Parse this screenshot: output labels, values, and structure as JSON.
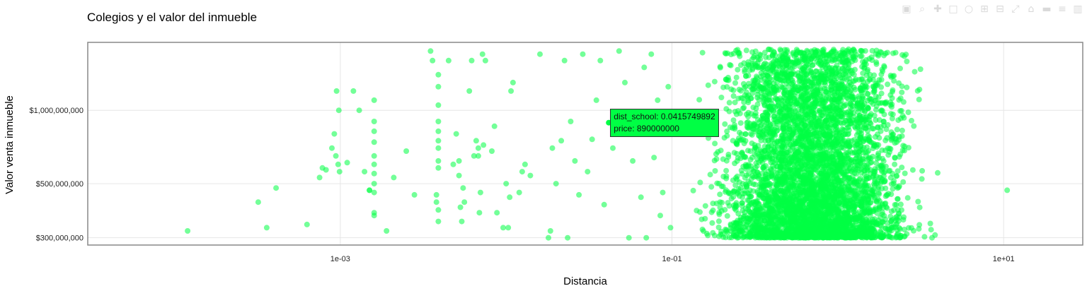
{
  "modebar": {
    "icons": [
      "camera-icon",
      "zoom-icon",
      "pan-icon",
      "box-select-icon",
      "lasso-select-icon",
      "zoom-in-icon",
      "zoom-out-icon",
      "autoscale-icon",
      "reset-axes-icon",
      "hover-closest-icon",
      "hover-compare-icon",
      "plotly-logo-icon"
    ],
    "glyphs": [
      "▣",
      "⌕",
      "✚",
      "□",
      "○",
      "⊞",
      "⊟",
      "⤢",
      "⌂",
      "▬",
      "≡",
      "▥"
    ]
  },
  "tooltip": {
    "line1": "dist_school:  0.0415749892",
    "line2": "price:  890000000"
  },
  "chart_data": {
    "type": "scatter",
    "title": "Colegios y el valor del inmueble",
    "xlabel": "Distancia",
    "ylabel": "Valor venta inmueble",
    "xscale": "log",
    "yscale": "log",
    "xlim": [
      3e-05,
      30
    ],
    "ylim": [
      280000000,
      1900000000
    ],
    "x_ticks": [
      {
        "value": 0.001,
        "label": "1e-03"
      },
      {
        "value": 0.1,
        "label": "1e-01"
      },
      {
        "value": 10,
        "label": "1e+01"
      }
    ],
    "y_ticks": [
      {
        "value": 300000000,
        "label": "$300,000,000"
      },
      {
        "value": 500000000,
        "label": "$500,000,000"
      },
      {
        "value": 1000000000,
        "label": "$1,000,000,000"
      }
    ],
    "grid": true,
    "marker_color": "#00ff44",
    "marker_opacity": 0.55,
    "n_points": 5200,
    "x_range_bulk": [
      0.1,
      5.0
    ],
    "y_range_bulk": [
      300000000,
      1780000000
    ],
    "highlight_point": {
      "x": 0.0415749892,
      "y": 890000000
    },
    "points": [
      [
        0.00012,
        320000000
      ],
      [
        0.00032,
        420000000
      ],
      [
        0.00036,
        330000000
      ],
      [
        0.00041,
        480000000
      ],
      [
        0.00063,
        340000000
      ],
      [
        0.00075,
        530000000
      ],
      [
        0.00078,
        580000000
      ],
      [
        0.00082,
        570000000
      ],
      [
        0.00089,
        700000000
      ],
      [
        0.00092,
        800000000
      ],
      [
        0.00094,
        650000000
      ],
      [
        0.00095,
        1200000000
      ],
      [
        0.00097,
        600000000
      ],
      [
        0.00098,
        1000000000
      ],
      [
        0.00099,
        560000000
      ],
      [
        0.0011,
        610000000
      ],
      [
        0.0012,
        1200000000
      ],
      [
        0.0013,
        1000000000
      ],
      [
        0.0014,
        560000000
      ],
      [
        0.0015,
        470000000
      ],
      [
        0.0015,
        470000000
      ],
      [
        0.0016,
        370000000
      ],
      [
        0.0016,
        380000000
      ],
      [
        0.0016,
        1100000000
      ],
      [
        0.0016,
        820000000
      ],
      [
        0.0016,
        900000000
      ],
      [
        0.0016,
        650000000
      ],
      [
        0.0016,
        600000000
      ],
      [
        0.0016,
        460000000
      ],
      [
        0.0016,
        500000000
      ],
      [
        0.0016,
        740000000
      ],
      [
        0.0016,
        550000000
      ],
      [
        0.0019,
        320000000
      ],
      [
        0.0021,
        530000000
      ],
      [
        0.0025,
        680000000
      ],
      [
        0.0028,
        450000000
      ],
      [
        0.0035,
        1750000000
      ],
      [
        0.0036,
        1600000000
      ],
      [
        0.0038,
        420000000
      ],
      [
        0.0038,
        450000000
      ],
      [
        0.0039,
        390000000
      ],
      [
        0.0039,
        350000000
      ],
      [
        0.0039,
        580000000
      ],
      [
        0.0039,
        620000000
      ],
      [
        0.0039,
        700000000
      ],
      [
        0.0039,
        750000000
      ],
      [
        0.0039,
        1050000000
      ],
      [
        0.0039,
        900000000
      ],
      [
        0.0039,
        1250000000
      ],
      [
        0.0039,
        1400000000
      ],
      [
        0.0039,
        820000000
      ],
      [
        0.0045,
        1600000000
      ],
      [
        0.0048,
        600000000
      ],
      [
        0.005,
        800000000
      ],
      [
        0.0052,
        540000000
      ],
      [
        0.0052,
        620000000
      ],
      [
        0.0053,
        400000000
      ],
      [
        0.0054,
        350000000
      ],
      [
        0.0055,
        480000000
      ],
      [
        0.0056,
        420000000
      ],
      [
        0.006,
        1200000000
      ],
      [
        0.0062,
        1600000000
      ],
      [
        0.0064,
        650000000
      ],
      [
        0.0066,
        750000000
      ],
      [
        0.0068,
        650000000
      ],
      [
        0.0068,
        700000000
      ],
      [
        0.0069,
        380000000
      ],
      [
        0.007,
        460000000
      ],
      [
        0.0072,
        1700000000
      ],
      [
        0.0073,
        720000000
      ],
      [
        0.0075,
        1600000000
      ],
      [
        0.0082,
        680000000
      ],
      [
        0.0085,
        860000000
      ],
      [
        0.0088,
        380000000
      ],
      [
        0.0096,
        330000000
      ],
      [
        0.01,
        500000000
      ],
      [
        0.0103,
        330000000
      ],
      [
        0.0105,
        440000000
      ],
      [
        0.0107,
        1200000000
      ],
      [
        0.011,
        1300000000
      ],
      [
        0.012,
        460000000
      ],
      [
        0.0125,
        560000000
      ],
      [
        0.013,
        600000000
      ],
      [
        0.014,
        540000000
      ],
      [
        0.016,
        1700000000
      ],
      [
        0.018,
        300000000
      ],
      [
        0.0185,
        320000000
      ],
      [
        0.019,
        700000000
      ],
      [
        0.02,
        500000000
      ],
      [
        0.0215,
        750000000
      ],
      [
        0.0225,
        1600000000
      ],
      [
        0.0235,
        300000000
      ],
      [
        0.0245,
        900000000
      ],
      [
        0.026,
        620000000
      ],
      [
        0.0275,
        450000000
      ],
      [
        0.029,
        1700000000
      ],
      [
        0.031,
        560000000
      ],
      [
        0.033,
        760000000
      ],
      [
        0.035,
        1100000000
      ],
      [
        0.037,
        1600000000
      ],
      [
        0.039,
        410000000
      ],
      [
        0.044,
        700000000
      ],
      [
        0.048,
        1750000000
      ],
      [
        0.052,
        1300000000
      ],
      [
        0.055,
        300000000
      ],
      [
        0.058,
        620000000
      ],
      [
        0.062,
        890000000
      ],
      [
        0.065,
        440000000
      ],
      [
        0.068,
        1500000000
      ],
      [
        0.07,
        300000000
      ],
      [
        0.075,
        1700000000
      ],
      [
        0.078,
        640000000
      ],
      [
        0.082,
        1100000000
      ],
      [
        0.085,
        370000000
      ],
      [
        0.088,
        460000000
      ],
      [
        0.092,
        820000000
      ],
      [
        0.095,
        1250000000
      ],
      [
        0.098,
        330000000
      ],
      [
        10.5,
        470000000
      ]
    ]
  }
}
